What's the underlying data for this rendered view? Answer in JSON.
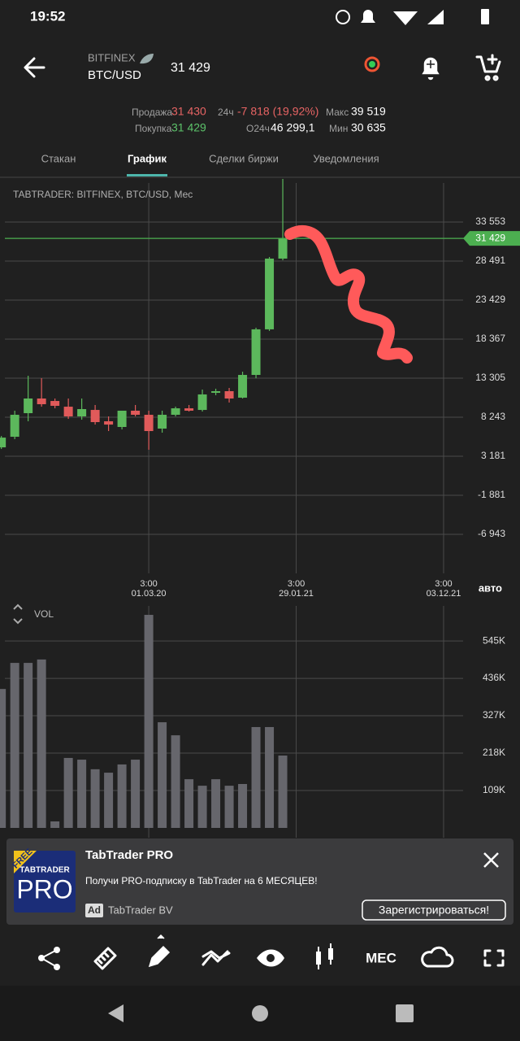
{
  "status_bar": {
    "time": "19:52"
  },
  "header": {
    "exchange": "BITFINEX",
    "pair": "BTC/USD",
    "price": "31 429"
  },
  "stats": {
    "sell_label": "Продажа",
    "sell": "31 430",
    "change_label": "24ч",
    "change": "-7 818 (19,92%)",
    "max_label": "Макс",
    "max": "39 519",
    "buy_label": "Покупка",
    "buy": "31 429",
    "volume_label": "О24ч",
    "volume": "46 299,1",
    "min_label": "Мин",
    "min": "30 635"
  },
  "tabs": {
    "items": [
      "Стакан",
      "График",
      "Сделки биржи",
      "Уведомления"
    ],
    "active": 1
  },
  "chart_data": [
    {
      "type": "candlestick",
      "title": "TABTRADER: BITFINEX, BTC/USD, Мес",
      "mode_label": "авто",
      "categories": [
        null,
        null,
        null,
        null,
        null,
        null,
        null,
        null,
        null,
        null,
        null,
        null,
        null,
        null,
        null,
        null,
        null,
        null,
        null,
        null,
        null,
        null
      ],
      "open": [
        4340,
        5710,
        8770,
        10670,
        10350,
        9610,
        8350,
        9190,
        7720,
        6980,
        9090,
        8560,
        6770,
        8560,
        9400,
        9190,
        11410,
        11620,
        10780,
        13730,
        19640,
        28810
      ],
      "high": [
        5810,
        9090,
        13620,
        13310,
        10670,
        10670,
        10670,
        9830,
        8350,
        9090,
        9830,
        9090,
        9090,
        9620,
        9830,
        11830,
        11940,
        12040,
        14150,
        19850,
        29020,
        40000
      ],
      "low": [
        4130,
        5400,
        7720,
        9610,
        9400,
        8030,
        7930,
        7290,
        6450,
        6660,
        8350,
        4030,
        6240,
        8350,
        8980,
        8980,
        11100,
        10150,
        10670,
        13300,
        19430,
        28600
      ],
      "close": [
        5600,
        8560,
        10670,
        9930,
        9720,
        8350,
        9300,
        7610,
        7290,
        9090,
        8560,
        6450,
        8560,
        9400,
        9090,
        11200,
        11620,
        10670,
        13730,
        19640,
        28810,
        31429
      ],
      "up_color": "#5cb85c",
      "down_color": "#e05a5a",
      "last_price": {
        "value": 31429,
        "label": "31 429"
      },
      "last_price_color": "#4caf50",
      "xlim": [
        -0.1,
        38.7
      ],
      "xticks": [
        {
          "value": 11,
          "label": "3:00",
          "date": "01.03.20"
        },
        {
          "value": 22,
          "label": "3:00",
          "date": "29.01.21"
        },
        {
          "value": 33,
          "label": "3:00",
          "date": "03.12.21"
        }
      ],
      "ylim": [
        -12000,
        39140
      ],
      "yticks": [
        {
          "value": 33553,
          "label": "33 553"
        },
        {
          "value": 28491,
          "label": "28 491"
        },
        {
          "value": 23429,
          "label": "23 429"
        },
        {
          "value": 18367,
          "label": "18 367"
        },
        {
          "value": 13305,
          "label": "13 305"
        },
        {
          "value": 8243,
          "label": "8 243"
        },
        {
          "value": 3181,
          "label": "3 181"
        },
        {
          "value": -1881,
          "label": "-1 881"
        },
        {
          "value": -6943,
          "label": "-6 943"
        }
      ],
      "grid": true
    },
    {
      "type": "bar",
      "title": "VOL",
      "color": "#66666c",
      "categories": [
        null,
        null,
        null,
        null,
        null,
        null,
        null,
        null,
        null,
        null,
        null,
        null,
        null,
        null,
        null,
        null,
        null,
        null,
        null,
        null,
        null,
        null
      ],
      "values": [
        405,
        481,
        481,
        491,
        19,
        204,
        199,
        171,
        161,
        185,
        199,
        621,
        308,
        270,
        142,
        123,
        142,
        123,
        128,
        294,
        294,
        211
      ],
      "xlim": [
        -0.1,
        38.7
      ],
      "ylim": [
        0,
        659
      ],
      "yticks": [
        {
          "value": 545,
          "label": "545K"
        },
        {
          "value": 436,
          "label": "436K"
        },
        {
          "value": 327,
          "label": "327K"
        },
        {
          "value": 218,
          "label": "218K"
        },
        {
          "value": 109,
          "label": "109K"
        }
      ],
      "grid": true
    }
  ],
  "ad": {
    "icon_free": "FREE",
    "icon_brand": "TABTRADER",
    "icon_pro": "PRO",
    "title": "TabTrader PRO",
    "text": "Получи PRO-подписку в TabTrader на 6 МЕСЯЦЕВ!",
    "badge": "Ad",
    "advertiser": "TabTrader BV",
    "button": "Зарегистрироваться!"
  },
  "toolbar": {
    "period": "МЕС"
  }
}
